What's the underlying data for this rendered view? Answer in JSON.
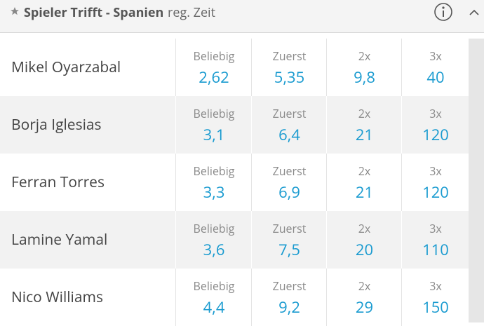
{
  "header": {
    "title": "Spieler Trifft - Spanien",
    "subtitle": "reg. Zeit"
  },
  "rows": [
    {
      "name": "Mikel Oyarzabal",
      "odds": [
        {
          "label": "Beliebig",
          "value": "2,62"
        },
        {
          "label": "Zuerst",
          "value": "5,35"
        },
        {
          "label": "2x",
          "value": "9,8"
        },
        {
          "label": "3x",
          "value": "40"
        }
      ]
    },
    {
      "name": "Borja Iglesias",
      "odds": [
        {
          "label": "Beliebig",
          "value": "3,1"
        },
        {
          "label": "Zuerst",
          "value": "6,4"
        },
        {
          "label": "2x",
          "value": "21"
        },
        {
          "label": "3x",
          "value": "120"
        }
      ]
    },
    {
      "name": "Ferran Torres",
      "odds": [
        {
          "label": "Beliebig",
          "value": "3,3"
        },
        {
          "label": "Zuerst",
          "value": "6,9"
        },
        {
          "label": "2x",
          "value": "21"
        },
        {
          "label": "3x",
          "value": "120"
        }
      ]
    },
    {
      "name": "Lamine Yamal",
      "odds": [
        {
          "label": "Beliebig",
          "value": "3,6"
        },
        {
          "label": "Zuerst",
          "value": "7,5"
        },
        {
          "label": "2x",
          "value": "20"
        },
        {
          "label": "3x",
          "value": "110"
        }
      ]
    },
    {
      "name": "Nico Williams",
      "odds": [
        {
          "label": "Beliebig",
          "value": "4,4"
        },
        {
          "label": "Zuerst",
          "value": "9,2"
        },
        {
          "label": "2x",
          "value": "29"
        },
        {
          "label": "3x",
          "value": "150"
        }
      ]
    }
  ]
}
